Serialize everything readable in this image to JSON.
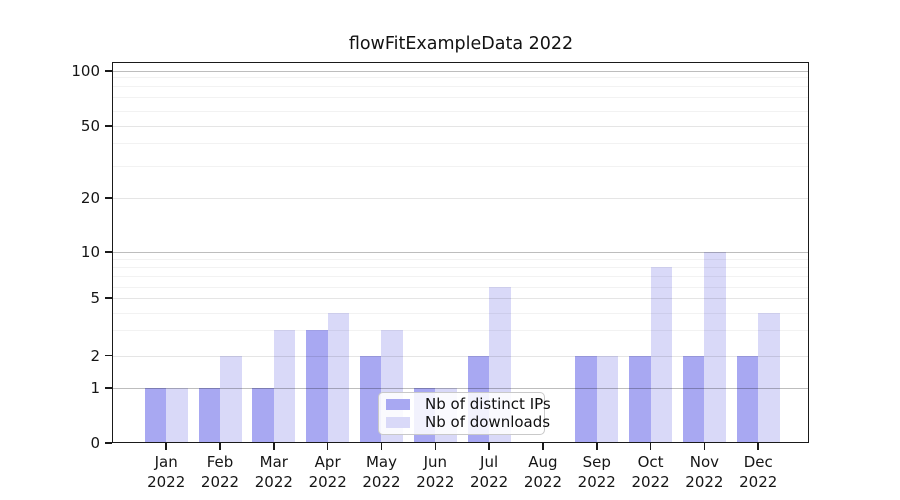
{
  "title": "flowFitExampleData 2022",
  "chart_data": {
    "type": "bar",
    "title": "flowFitExampleData 2022",
    "categories": [
      "Jan 2022",
      "Feb 2022",
      "Mar 2022",
      "Apr 2022",
      "May 2022",
      "Jun 2022",
      "Jul 2022",
      "Aug 2022",
      "Sep 2022",
      "Oct 2022",
      "Nov 2022",
      "Dec 2022"
    ],
    "series": [
      {
        "name": "Nb of distinct IPs",
        "color": "#a8a8f2",
        "values": [
          1,
          1,
          1,
          3,
          2,
          1,
          2,
          0,
          2,
          2,
          2,
          2
        ]
      },
      {
        "name": "Nb of downloads",
        "color": "#d9d9f8",
        "values": [
          1,
          2,
          3,
          4,
          3,
          1,
          6,
          0,
          2,
          8,
          10,
          4
        ]
      }
    ],
    "y_axis": {
      "scale": "log_with_zero_floor",
      "tick_labels": [
        "0",
        "1",
        "2",
        "5",
        "10",
        "20",
        "50",
        "100"
      ],
      "tick_values": [
        0,
        1,
        2,
        5,
        10,
        20,
        50,
        100
      ],
      "range_top": 100,
      "minor_grid_values": [
        3,
        4,
        6,
        7,
        8,
        9,
        30,
        40,
        60,
        70,
        80,
        90
      ]
    },
    "x_axis": {
      "tick_label_lines": 2
    },
    "grid": "horizontal",
    "legend": {
      "position": "inside-bottom-center",
      "entries": [
        "Nb of distinct IPs",
        "Nb of downloads"
      ],
      "background": "#ffffff",
      "border_color": "#c9c9c9"
    },
    "colors": {
      "axis": "#1a1a1a",
      "text": "#151515",
      "major_grid": "#bdbdbd",
      "minor_grid": "#f2f2f2"
    }
  }
}
